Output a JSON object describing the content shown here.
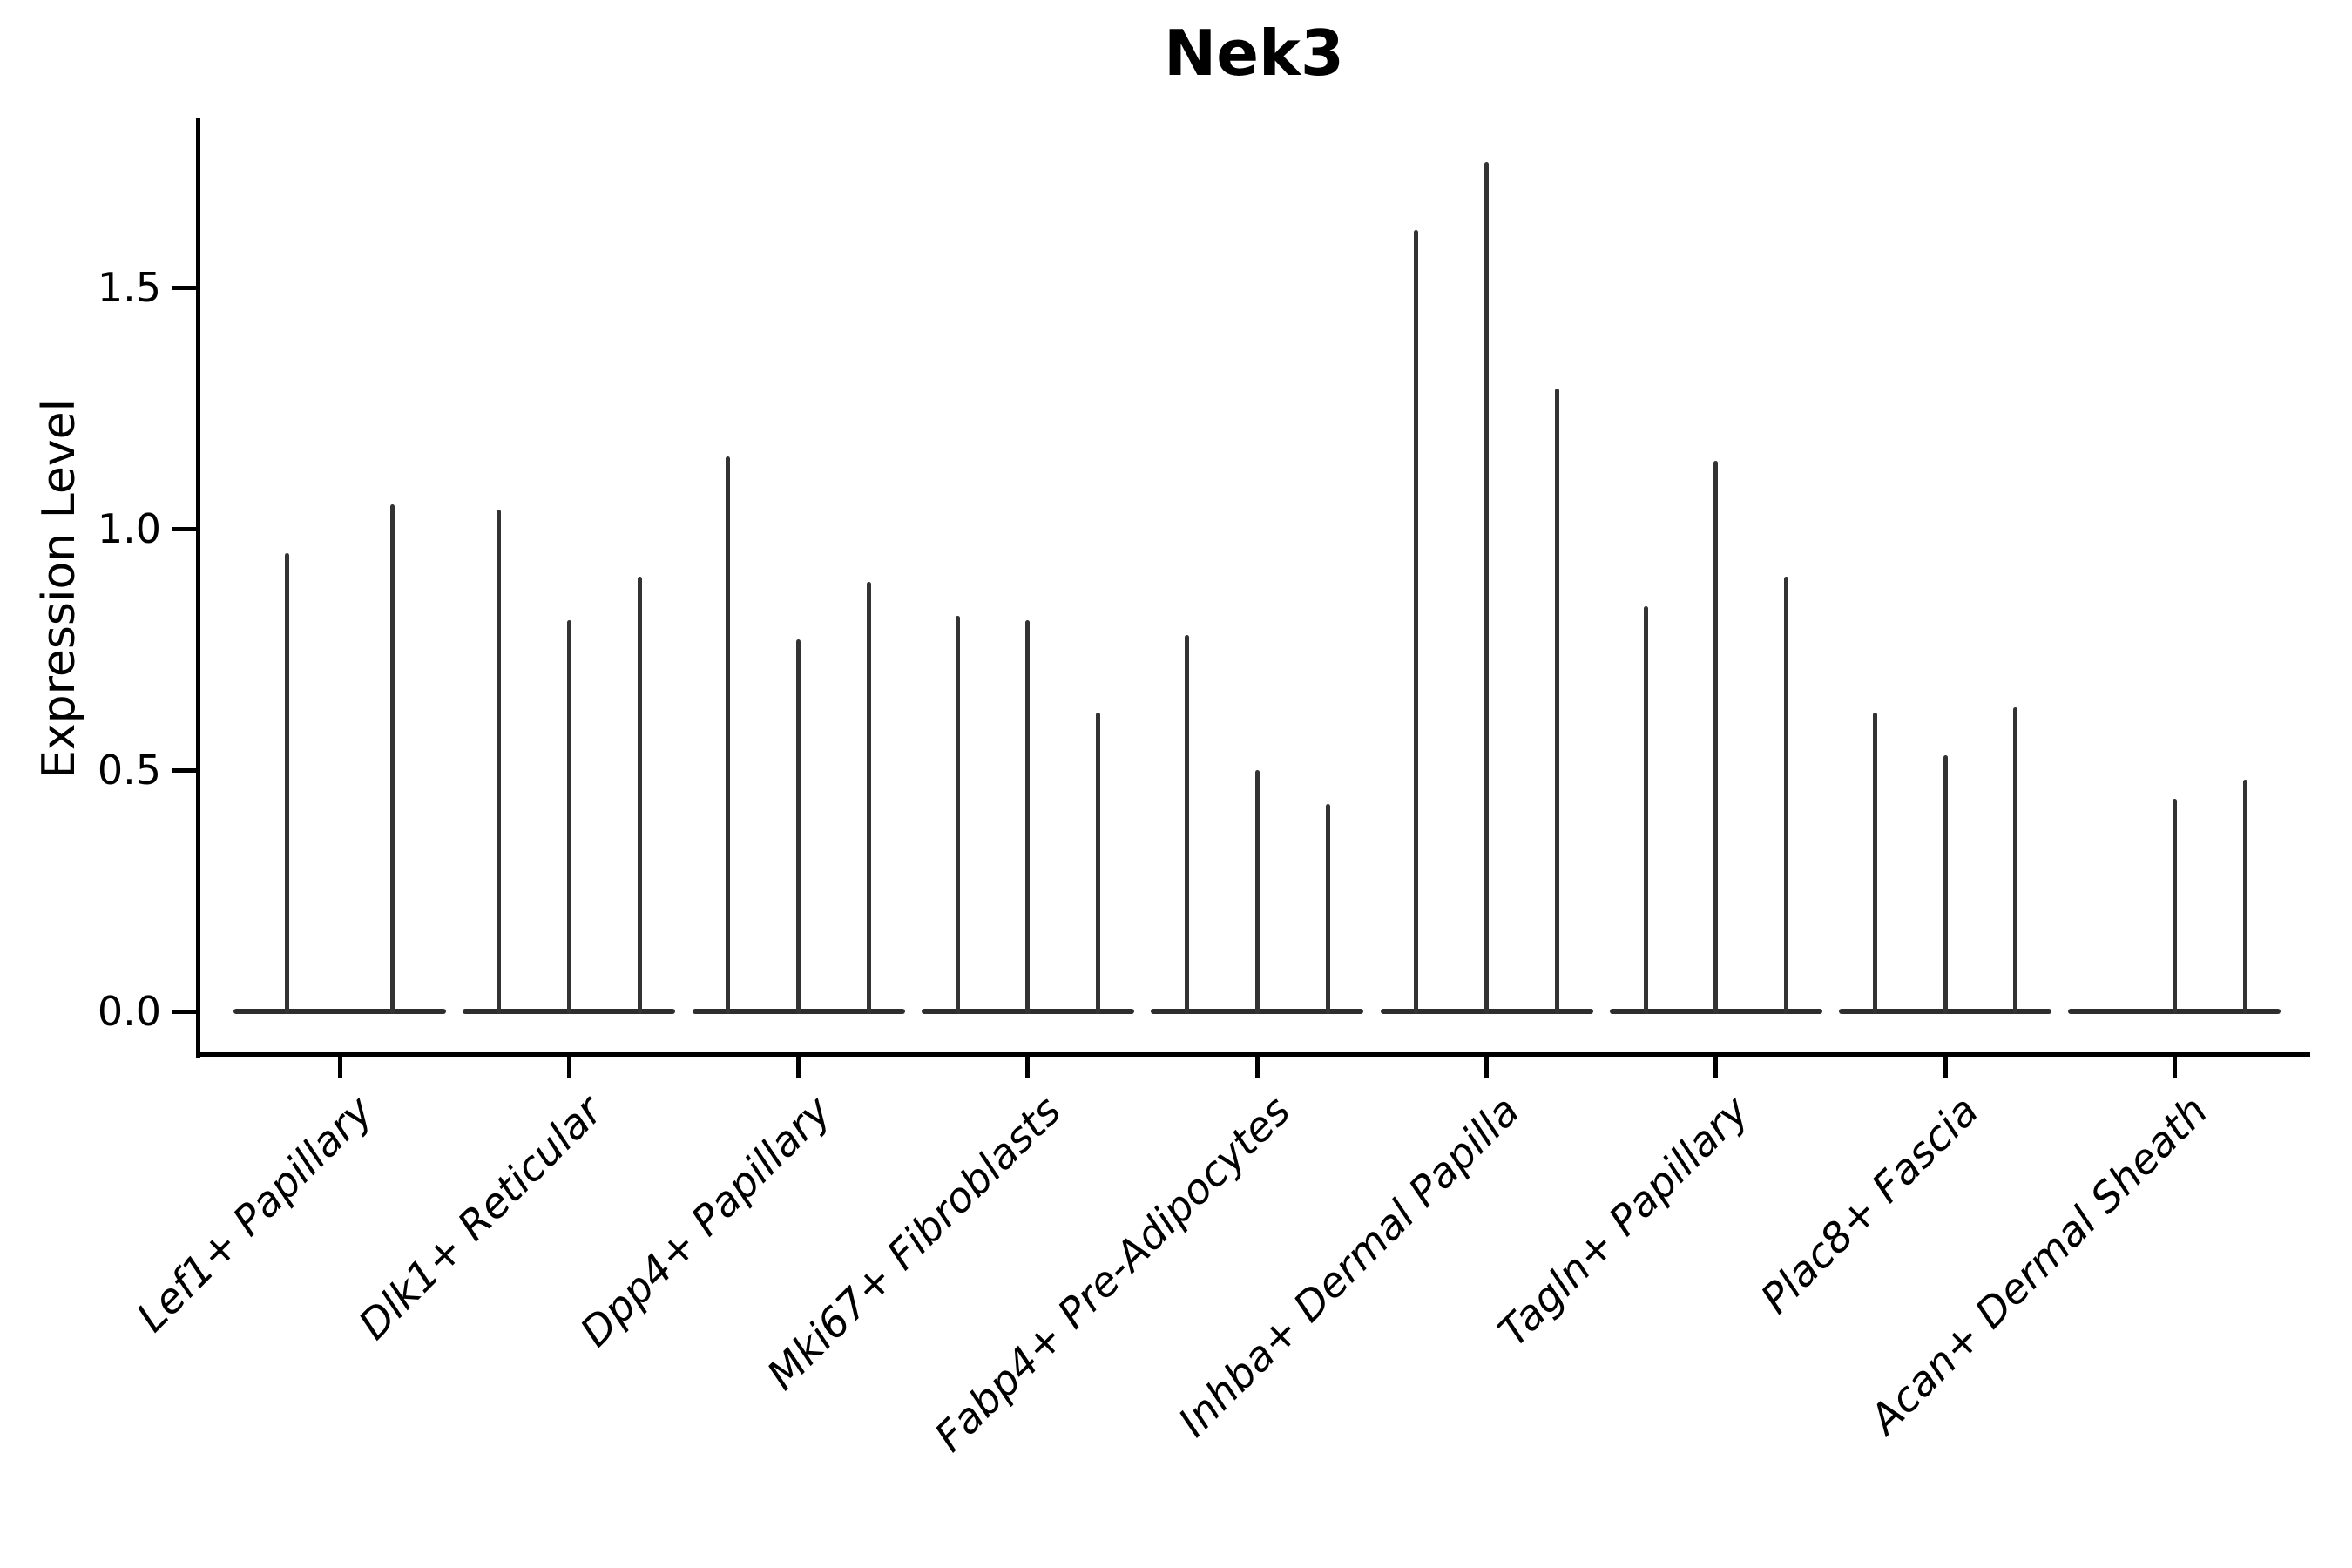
{
  "chart_data": {
    "type": "violin",
    "title": "Nek3",
    "ylabel": "Expression Level",
    "xlabel": "",
    "yticks": [
      0.0,
      0.5,
      1.0,
      1.5
    ],
    "ylim": [
      -0.09,
      1.87
    ],
    "grid": false,
    "legend": "none",
    "style_note": "Seurat-style single-cell violin plot; each violin is collapsed to a thin vertical spike reaching the maximum expression value with a flat wide base at 0",
    "categories": [
      "Lef1+ Papillary",
      "Dlk1+ Reticular",
      "Dpp4+ Papillary",
      "Mki67+ Fibroblasts",
      "Fabp4+ Pre-Adipocytes",
      "Inhba+ Dermal Papilla",
      "Tagln+ Papillary",
      "Plac8+ Fascia",
      "Acan+ Dermal Sheath"
    ],
    "groups": [
      {
        "category": "Lef1+ Papillary",
        "violin_max_values": [
          0.95,
          1.05
        ]
      },
      {
        "category": "Dlk1+ Reticular",
        "violin_max_values": [
          1.04,
          0.81,
          0.9
        ]
      },
      {
        "category": "Dpp4+ Papillary",
        "violin_max_values": [
          1.15,
          0.77,
          0.89
        ]
      },
      {
        "category": "Mki67+ Fibroblasts",
        "violin_max_values": [
          0.82,
          0.81,
          0.62
        ]
      },
      {
        "category": "Fabp4+ Pre-Adipocytes",
        "violin_max_values": [
          0.78,
          0.5,
          0.43
        ]
      },
      {
        "category": "Inhba+ Dermal Papilla",
        "violin_max_values": [
          1.62,
          1.76,
          1.29
        ]
      },
      {
        "category": "Tagln+ Papillary",
        "violin_max_values": [
          0.84,
          1.14,
          0.9
        ]
      },
      {
        "category": "Plac8+ Fascia",
        "violin_max_values": [
          0.62,
          0.53,
          0.63
        ]
      },
      {
        "category": "Acan+ Dermal Sheath",
        "violin_max_values": [
          0.0,
          0.44,
          0.48
        ]
      }
    ],
    "colors": {
      "spike": "#333333",
      "violin_base": "#2e2e2e",
      "spine": "#000000",
      "text": "#000000",
      "background": "#ffffff"
    }
  }
}
